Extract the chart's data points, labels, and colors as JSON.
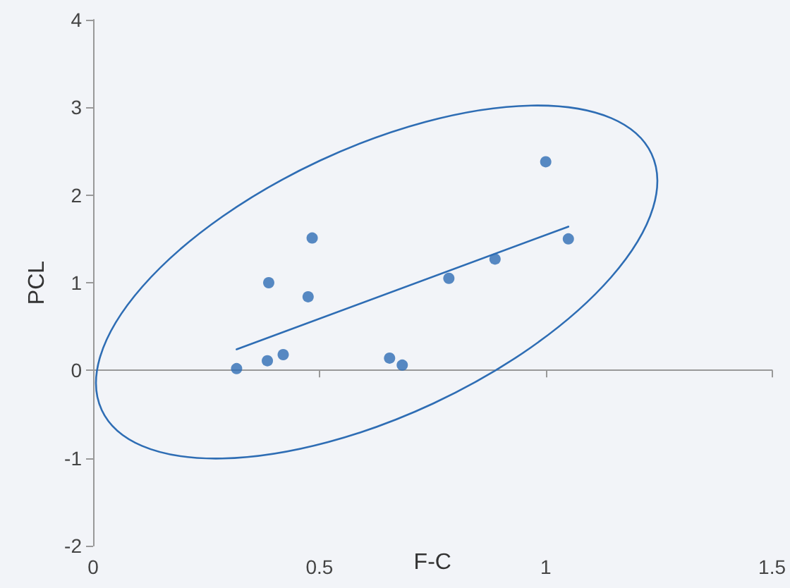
{
  "chart_data": {
    "type": "scatter",
    "xlabel": "F-C",
    "ylabel": "PCL",
    "xlim": [
      0,
      1.5
    ],
    "xticks": [
      0,
      0.5,
      1,
      1.5
    ],
    "ylim": [
      -2,
      4
    ],
    "yticks": [
      -2,
      -1,
      0,
      1,
      2,
      3,
      4
    ],
    "series": [
      {
        "color": "#2e6db4",
        "marker": "circle",
        "x": [
          0.317,
          0.385,
          0.42,
          0.388,
          0.475,
          0.484,
          0.655,
          0.683,
          0.786,
          0.888,
          1.0,
          1.05
        ],
        "values": [
          0.02,
          0.11,
          0.18,
          1.0,
          0.84,
          1.51,
          0.14,
          0.06,
          1.05,
          1.27,
          2.38,
          1.5
        ]
      },
      {
        "type": "line",
        "color": "#2e6db4",
        "marker": "none",
        "line_style": "solid",
        "x": [
          0.317,
          1.05
        ],
        "values": [
          0.24,
          1.64
        ]
      }
    ]
  }
}
